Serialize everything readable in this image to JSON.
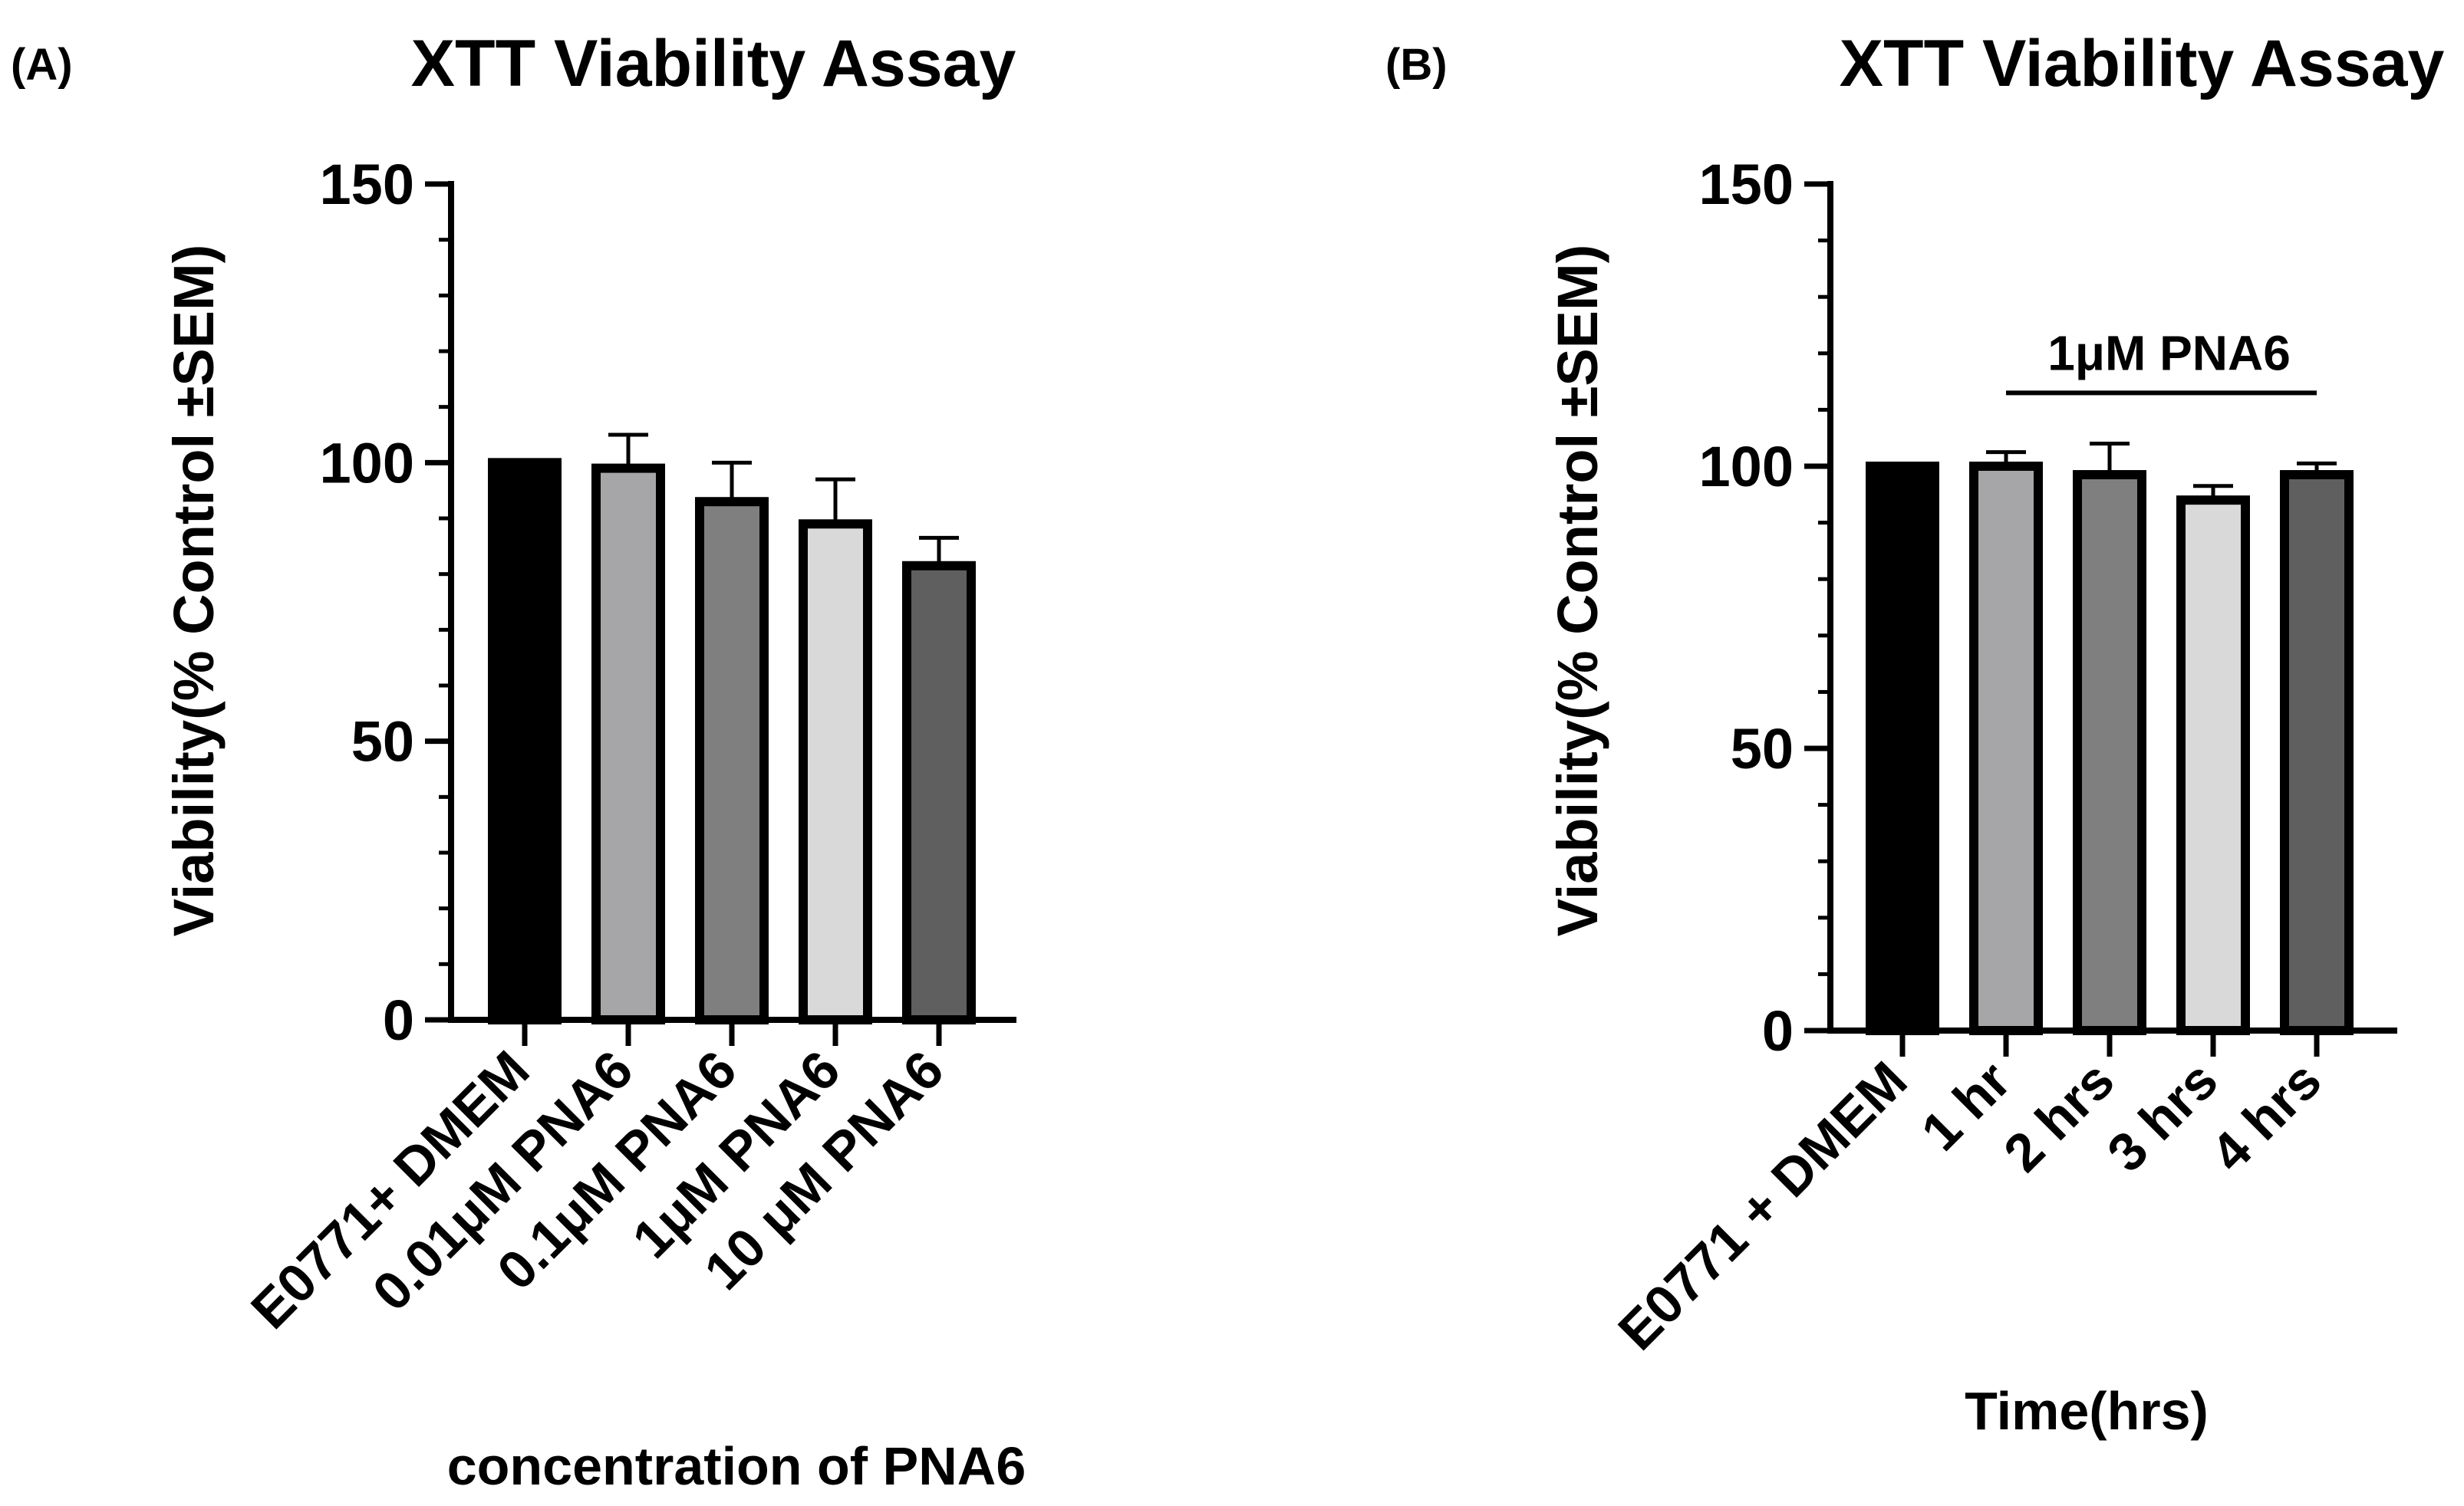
{
  "chart_data": [
    {
      "type": "bar",
      "panel_label": "(A)",
      "title": "XTT Viability Assay",
      "ylabel": "Viability(% Control  ±SEM)",
      "xlabel": "concentration of PNA6",
      "ylim": [
        0,
        150
      ],
      "yticks": [
        0,
        50,
        100,
        150
      ],
      "grid": false,
      "legend": "none",
      "categories": [
        "E0771+ DMEM",
        "0.01μM PNA6",
        "0.1μM PNA6",
        "1μM PNA6",
        "10 μM PNA6"
      ],
      "values": [
        100,
        99,
        93,
        89,
        81.5
      ],
      "errors": [
        0,
        6,
        7,
        8,
        5
      ],
      "colors": [
        "#000000",
        "#a6a6a8",
        "#7f7f7f",
        "#d9d9d9",
        "#5f5f5f"
      ]
    },
    {
      "type": "bar",
      "panel_label": "(B)",
      "title": "XTT Viability Assay",
      "ylabel": "Viability(% Control  ±SEM)",
      "xlabel": "Time(hrs)",
      "ylim": [
        0,
        150
      ],
      "yticks": [
        0,
        50,
        100,
        150
      ],
      "grid": false,
      "legend": "none",
      "categories": [
        "E0771 + DMEM",
        "1 hr",
        "2 hrs",
        "3 hrs",
        "4 hrs"
      ],
      "values": [
        100,
        100,
        98.5,
        94,
        98.5
      ],
      "errors": [
        0,
        2.5,
        5.5,
        2.5,
        2
      ],
      "colors": [
        "#000000",
        "#a6a6a8",
        "#7f7f7f",
        "#d9d9d9",
        "#5f5f5f"
      ],
      "annotation": "1μM PNA6"
    }
  ]
}
